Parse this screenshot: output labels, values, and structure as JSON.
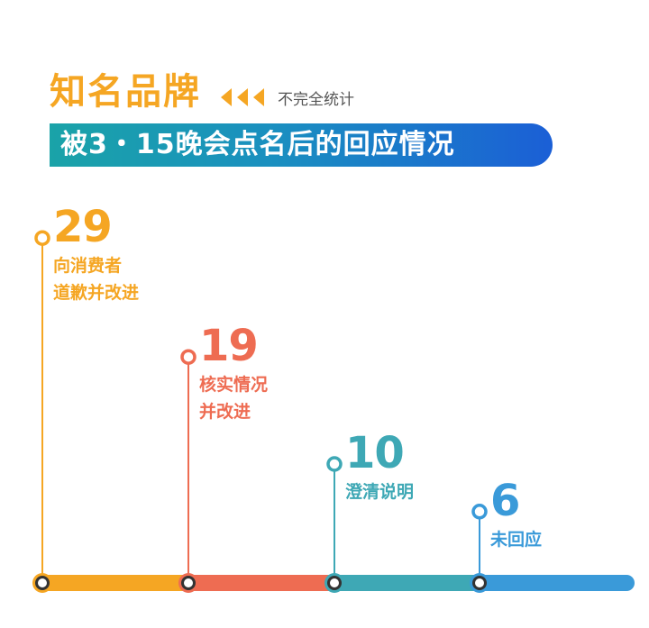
{
  "header": {
    "title": "知名品牌",
    "note": "不完全统计",
    "banner": "被3・15晚会点名后的回应情况"
  },
  "chart_data": {
    "type": "bar",
    "categories": [
      "向消费者道歉并改进",
      "核实情况并改进",
      "澄清说明",
      "未回应"
    ],
    "values": [
      29,
      19,
      10,
      6
    ],
    "label_lines": [
      [
        "向消费者",
        "道歉并改进"
      ],
      [
        "核实情况",
        "并改进"
      ],
      [
        "澄清说明"
      ],
      [
        "未回应"
      ]
    ],
    "value_labels": [
      "29",
      "19",
      "10",
      "6"
    ],
    "colors": [
      "#f5a623",
      "#ee6c52",
      "#3ea8b5",
      "#3a9ad9"
    ]
  }
}
